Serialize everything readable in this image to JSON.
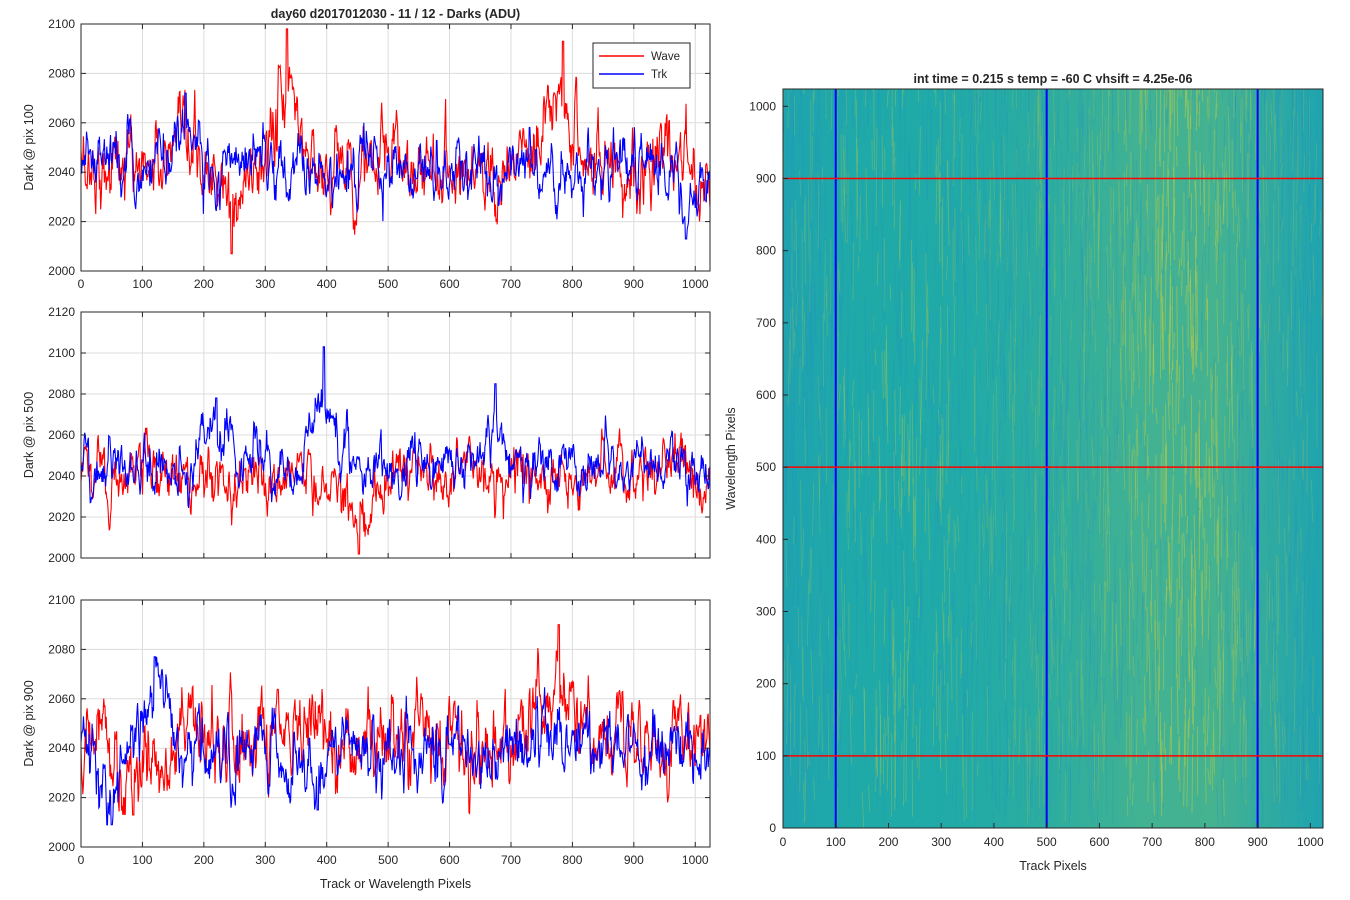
{
  "figure": {
    "background": "#ffffff"
  },
  "chart_data": [
    {
      "type": "line",
      "title": "day60 d2017012030 - 11 / 12 - Darks (ADU)",
      "xlabel": "",
      "ylabel": "Dark @ pix 100",
      "xlim": [
        0,
        1024
      ],
      "ylim": [
        2000,
        2100
      ],
      "xticks": [
        0,
        100,
        200,
        300,
        400,
        500,
        600,
        700,
        800,
        900,
        1000
      ],
      "yticks": [
        2000,
        2020,
        2040,
        2060,
        2080,
        2100
      ],
      "show_xticklabels": true,
      "grid": true,
      "legend": {
        "placement": "top-right",
        "entries": [
          "Wave",
          "Trk"
        ]
      },
      "series": [
        {
          "name": "Wave",
          "color": "#ff0000",
          "summary": {
            "mean": 2043,
            "sd": 9,
            "min": 2007,
            "max": 2098
          },
          "features": [
            {
              "x": 335,
              "y": 2098
            },
            {
              "x": 245,
              "y": 2007
            },
            {
              "x": 785,
              "y": 2093
            }
          ]
        },
        {
          "name": "Trk",
          "color": "#0000ff",
          "summary": {
            "mean": 2041,
            "sd": 7,
            "min": 2013,
            "max": 2072
          },
          "features": [
            {
              "x": 170,
              "y": 2072
            },
            {
              "x": 985,
              "y": 2013
            }
          ]
        }
      ]
    },
    {
      "type": "line",
      "title": "",
      "xlabel": "",
      "ylabel": "Dark @ pix 500",
      "xlim": [
        0,
        1024
      ],
      "ylim": [
        2000,
        2120
      ],
      "xticks": [
        0,
        100,
        200,
        300,
        400,
        500,
        600,
        700,
        800,
        900,
        1000
      ],
      "yticks": [
        2000,
        2020,
        2040,
        2060,
        2080,
        2100,
        2120
      ],
      "show_xticklabels": false,
      "grid": true,
      "series": [
        {
          "name": "Wave",
          "color": "#ff0000",
          "summary": {
            "mean": 2040,
            "sd": 8,
            "min": 2002,
            "max": 2072
          },
          "features": [
            {
              "x": 452,
              "y": 2002
            }
          ]
        },
        {
          "name": "Trk",
          "color": "#0000ff",
          "summary": {
            "mean": 2045,
            "sd": 7,
            "min": 2016,
            "max": 2103
          },
          "features": [
            {
              "x": 395,
              "y": 2103
            },
            {
              "x": 220,
              "y": 2078
            },
            {
              "x": 675,
              "y": 2085
            }
          ]
        }
      ]
    },
    {
      "type": "line",
      "title": "",
      "xlabel": "Track or Wavelength Pixels",
      "ylabel": "Dark @ pix 900",
      "xlim": [
        0,
        1024
      ],
      "ylim": [
        2000,
        2100
      ],
      "xticks": [
        0,
        100,
        200,
        300,
        400,
        500,
        600,
        700,
        800,
        900,
        1000
      ],
      "yticks": [
        2000,
        2020,
        2040,
        2060,
        2080,
        2100
      ],
      "show_xticklabels": true,
      "grid": true,
      "series": [
        {
          "name": "Wave",
          "color": "#ff0000",
          "summary": {
            "mean": 2042,
            "sd": 10,
            "min": 2013,
            "max": 2090
          },
          "features": [
            {
              "x": 778,
              "y": 2090
            },
            {
              "x": 85,
              "y": 2013
            }
          ]
        },
        {
          "name": "Trk",
          "color": "#0000ff",
          "summary": {
            "mean": 2040,
            "sd": 8,
            "min": 2009,
            "max": 2077
          },
          "features": [
            {
              "x": 50,
              "y": 2009
            },
            {
              "x": 385,
              "y": 2015
            },
            {
              "x": 120,
              "y": 2077
            }
          ]
        }
      ]
    },
    {
      "type": "heatmap",
      "title": "int time = 0.215 s   temp = -60 C   vhsift = 4.25e-06",
      "xlabel": "Track Pixels",
      "ylabel": "Wavelength Pixels",
      "xlim": [
        0,
        1024
      ],
      "ylim": [
        0,
        1024
      ],
      "xticks": [
        0,
        100,
        200,
        300,
        400,
        500,
        600,
        700,
        800,
        900,
        1000
      ],
      "yticks": [
        0,
        100,
        200,
        300,
        400,
        500,
        600,
        700,
        800,
        900,
        1000
      ],
      "colormap": {
        "low": "#1f8fc6",
        "mid": "#1faaa8",
        "high": "#b8cc48"
      },
      "description_of_field": "stripy noise, brighter region near track pixels 650-850",
      "markers": {
        "vertical_lines": {
          "color": "#0000ff",
          "x": [
            100,
            500,
            900
          ]
        },
        "horizontal_lines": {
          "color": "#ff0000",
          "y": [
            100,
            500,
            900
          ]
        }
      }
    }
  ]
}
